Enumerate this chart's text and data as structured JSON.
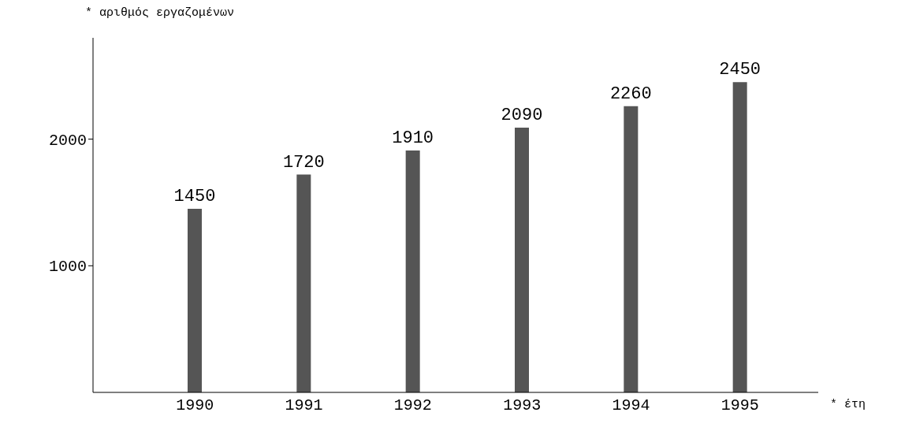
{
  "chart_data": {
    "type": "bar",
    "ylabel": "* αριθμός εργαζομένων",
    "xlabel": "* έτη",
    "categories": [
      "1990",
      "1991",
      "1992",
      "1993",
      "1994",
      "1995"
    ],
    "values": [
      1450,
      1720,
      1910,
      2090,
      2260,
      2450
    ],
    "color": "#555555",
    "ylim": [
      0,
      2800
    ],
    "yticks": [
      1000,
      2000
    ],
    "data_labels": true
  }
}
